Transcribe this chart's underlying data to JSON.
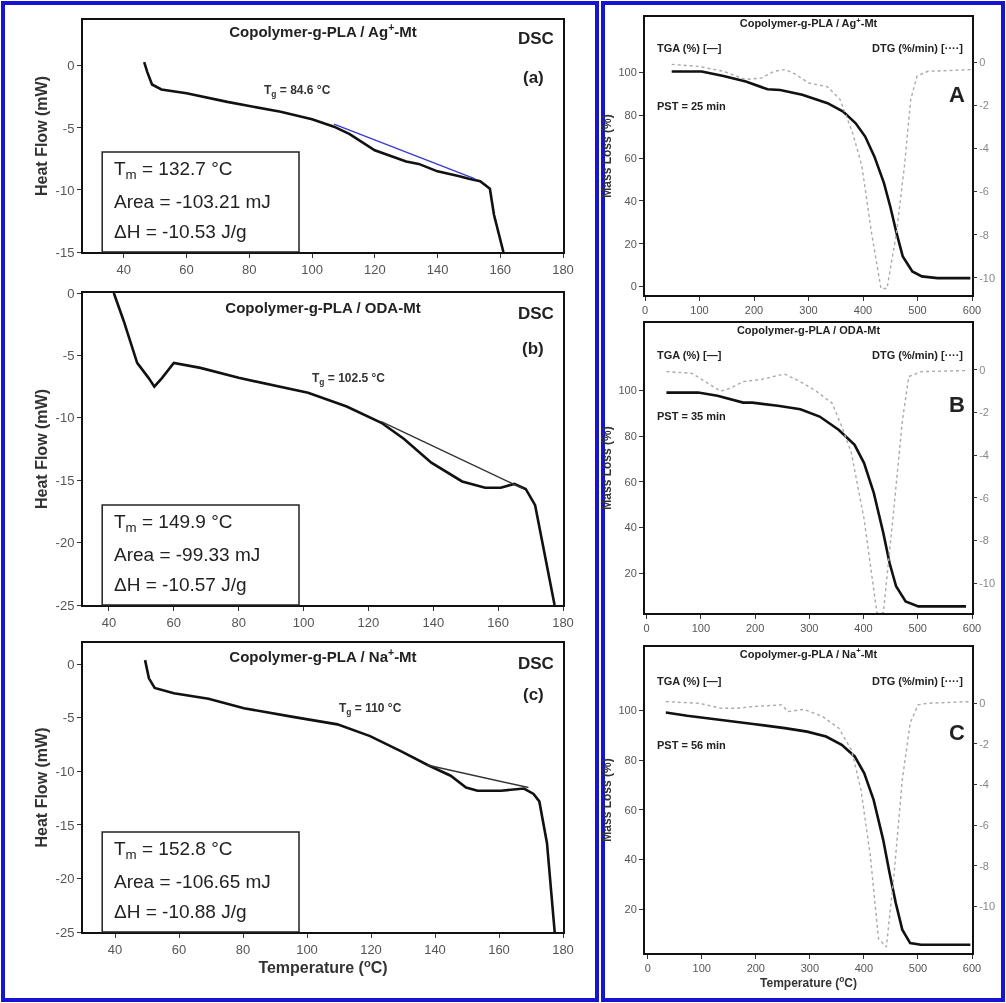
{
  "chart_data": [
    {
      "type": "line",
      "title": "Copolymer-g-PLA / Ag$^{+}$-Mt",
      "ylabel": "Heat Flow (mW)",
      "xlim": [
        27,
        180
      ],
      "xticks": [
        40,
        60,
        80,
        100,
        120,
        140,
        160,
        180
      ],
      "ylim": [
        -15,
        3.7
      ],
      "yticks": [
        0,
        -5,
        -10,
        -15
      ],
      "grid": false,
      "annotations": [
        "DSC",
        "(a)",
        "T$_{m}$ = 132.7 °C",
        "Area = -103.21 mJ",
        "ΔH = -10.53 J/g",
        {
          "text": "T$_{g}$ = 84.6 °C",
          "x": 84.6,
          "y": -3.2
        }
      ],
      "series": [
        {
          "color": "#111111",
          "line_style": "solid",
          "x": [
            46.5,
            47.5,
            49,
            52,
            60,
            73,
            90,
            100,
            107,
            112,
            120,
            130,
            134,
            140,
            147,
            150,
            153.6,
            156.7,
            158,
            161
          ],
          "values": [
            0.3,
            -0.5,
            -1.5,
            -1.9,
            -2.2,
            -2.9,
            -3.7,
            -4.3,
            -4.9,
            -5.5,
            -6.8,
            -7.7,
            -7.9,
            -8.5,
            -8.9,
            -9.1,
            -9.3,
            -9.9,
            -12,
            -15
          ]
        },
        {
          "color": "#3a3ad0",
          "line_style": "solid",
          "x": [
            107,
            152
          ],
          "values": [
            -4.7,
            -9.1
          ]
        }
      ]
    },
    {
      "type": "line",
      "title": "Copolymer-g-PLA / ODA-Mt",
      "ylabel": "Heat Flow (mW)",
      "xlim": [
        32,
        180
      ],
      "xticks": [
        40,
        60,
        80,
        100,
        120,
        140,
        160,
        180
      ],
      "ylim": [
        -25,
        0
      ],
      "yticks": [
        0,
        -5,
        -10,
        -15,
        -20,
        -25
      ],
      "grid": false,
      "annotations": [
        "DSC",
        "(b)",
        "T$_{m}$ = 149.9 °C",
        "Area = -99.33 mJ",
        "ΔH = -10.57 J/g",
        {
          "text": "T$_{g}$ = 102.5 °C",
          "x": 102.5,
          "y": -8.1
        }
      ],
      "series": [
        {
          "color": "#111111",
          "line_style": "solid",
          "x": [
            41.5,
            44.5,
            48.7,
            52.2,
            54,
            56.4,
            60,
            68.2,
            80,
            101.4,
            113.3,
            124,
            131,
            139.4,
            148.9,
            156,
            160.8,
            165,
            168.5,
            171.4,
            177.4
          ],
          "values": [
            0,
            -2.2,
            -5.6,
            -6.8,
            -7.5,
            -6.8,
            -5.6,
            -6,
            -6.8,
            -8,
            -9.1,
            -10.4,
            -11.7,
            -13.6,
            -15.1,
            -15.6,
            -15.6,
            -15.3,
            -15.7,
            -17,
            -25
          ]
        },
        {
          "color": "#333333",
          "line_style": "solid",
          "x": [
            124,
            167.9
          ],
          "values": [
            -10.3,
            -15.7
          ]
        }
      ]
    },
    {
      "type": "line",
      "title": "Copolymer-g-PLA / Na$^{+}$-Mt",
      "xlabel": "Temperature ($^{o}$C)",
      "ylabel": "Heat Flow (mW)",
      "xlim": [
        30,
        180
      ],
      "xticks": [
        40,
        60,
        80,
        100,
        120,
        140,
        160,
        180
      ],
      "ylim": [
        -25,
        2
      ],
      "yticks": [
        0,
        -5,
        -10,
        -15,
        -20,
        -25
      ],
      "grid": false,
      "annotations": [
        "DSC",
        "(c)",
        "T$_{m}$ = 152.8 °C",
        "Area = -106.65 mJ",
        "ΔH = -10.88 J/g",
        {
          "text": "T$_{g}$ = 110 °C",
          "x": 110,
          "y": -5.6
        }
      ],
      "series": [
        {
          "color": "#111111",
          "line_style": "solid",
          "x": [
            49.4,
            50.6,
            52.4,
            58.4,
            69.2,
            80.3,
            95.6,
            109.5,
            119.7,
            129.3,
            137.7,
            144.9,
            149.7,
            153.3,
            160.6,
            167.8,
            170.8,
            172.6,
            175,
            177.4
          ],
          "values": [
            0.4,
            -1.3,
            -2.2,
            -2.7,
            -3.2,
            -4.1,
            -4.9,
            -5.6,
            -6.7,
            -8.1,
            -9.4,
            -10.4,
            -11.5,
            -11.8,
            -11.8,
            -11.6,
            -12.1,
            -12.8,
            -16.7,
            -25
          ]
        },
        {
          "color": "#333333",
          "line_style": "solid",
          "x": [
            137.5,
            169.2
          ],
          "values": [
            -9.4,
            -11.5
          ]
        }
      ]
    },
    {
      "type": "line",
      "title": "Copolymer-g-PLA / Ag$^{+}$-Mt",
      "ylabel": "Mass Loss (%)",
      "xlim": [
        0,
        600
      ],
      "xticks": [
        0,
        100,
        200,
        300,
        400,
        500,
        600
      ],
      "ylim": [
        -4,
        126
      ],
      "yticks": [
        0,
        20,
        40,
        60,
        80,
        100
      ],
      "y2lim": [
        -10.8,
        2.1
      ],
      "y2ticks": [
        0,
        -2,
        -4,
        -6,
        -8,
        -10
      ],
      "grid": false,
      "annotations": [
        "TGA (%) [—]",
        "DTG (%/min) [····]",
        "PST = 25 min",
        "A"
      ],
      "series": [
        {
          "color": "#111111",
          "line_style": "solid",
          "x": [
            49,
            104,
            144,
            185,
            225,
            248,
            288.5,
            335,
            363.5,
            386.6,
            404,
            421,
            438.5,
            450,
            461.6,
            473,
            490.5,
            508,
            536.6,
            597
          ],
          "values": [
            100.5,
            100.5,
            98.4,
            95.8,
            92.2,
            91.9,
            89.6,
            85.7,
            81.8,
            76.3,
            70.1,
            60.7,
            48.3,
            37.4,
            24.9,
            14,
            7,
            4.7,
            3.9,
            3.9
          ]
        },
        {
          "color": "#aaaaaa",
          "line_style": "dotted",
          "axis": "y2",
          "x": [
            49,
            98,
            144,
            185,
            213.5,
            236.6,
            257,
            277,
            300,
            335,
            358,
            381,
            398,
            415.5,
            433,
            444,
            461.6,
            476,
            487.6,
            499,
            519,
            600
          ],
          "values": [
            -0.1,
            -0.19,
            -0.42,
            -0.8,
            -0.73,
            -0.42,
            -0.34,
            -0.57,
            -0.96,
            -1.14,
            -1.73,
            -3.28,
            -4.82,
            -7.9,
            -10.5,
            -10.5,
            -7.9,
            -4.82,
            -1.73,
            -0.65,
            -0.42,
            -0.34
          ]
        }
      ]
    },
    {
      "type": "line",
      "title": "Copolymer-g-PLA / ODA-Mt",
      "ylabel": "Mass Loss (%)",
      "xlim": [
        -3,
        600
      ],
      "xticks": [
        0,
        100,
        200,
        300,
        400,
        500,
        600
      ],
      "ylim": [
        2.5,
        129.6
      ],
      "yticks": [
        20,
        40,
        60,
        80,
        100
      ],
      "y2lim": [
        -11.4,
        2.2
      ],
      "y2ticks": [
        0,
        -2,
        -4,
        -6,
        -8,
        -10
      ],
      "grid": false,
      "annotations": [
        "TGA (%) [—]",
        "DTG (%/min) [····]",
        "PST = 35 min",
        "B"
      ],
      "series": [
        {
          "color": "#111111",
          "line_style": "solid",
          "x": [
            36.5,
            95,
            130.6,
            178,
            195,
            242,
            283.5,
            319,
            354,
            383.5,
            401,
            419,
            436.5,
            448,
            460,
            477.6,
            501,
            589
          ],
          "values": [
            99.1,
            99.1,
            97.7,
            94.7,
            94.7,
            93.3,
            91.8,
            88.6,
            82.8,
            76.2,
            68.2,
            55,
            37.5,
            24.4,
            14.2,
            7.6,
            5.4,
            5.4
          ]
        },
        {
          "color": "#aaaaaa",
          "line_style": "dotted",
          "axis": "y2",
          "x": [
            36.5,
            83.5,
            136.5,
            154,
            178,
            213,
            254,
            283.5,
            313,
            342,
            360,
            377.6,
            401,
            424.7,
            436.5,
            454,
            471.8,
            483.5,
            507,
            589
          ],
          "values": [
            -0.08,
            -0.16,
            -1,
            -0.86,
            -0.55,
            -0.44,
            -0.19,
            -0.55,
            -1,
            -1.56,
            -2.66,
            -3.9,
            -7,
            -11.4,
            -11.4,
            -7,
            -2.34,
            -0.31,
            -0.08,
            -0.03
          ]
        }
      ]
    },
    {
      "type": "line",
      "title": "Copolymer-g-PLA / Na$^{+}$-Mt",
      "xlabel": "Temperature ($^{o}$C)",
      "ylabel": "Mass Loss (%)",
      "xlim": [
        -5,
        600
      ],
      "xticks": [
        0,
        100,
        200,
        300,
        400,
        500,
        600
      ],
      "ylim": [
        2.3,
        125.6
      ],
      "yticks": [
        20,
        40,
        60,
        80,
        100
      ],
      "y2lim": [
        -12.3,
        2.77
      ],
      "y2ticks": [
        0,
        -2,
        -4,
        -6,
        -8,
        -10
      ],
      "grid": false,
      "annotations": [
        "TGA (%) [—]",
        "DTG (%/min) [····]",
        "PST = 56 min",
        "C"
      ],
      "series": [
        {
          "color": "#111111",
          "line_style": "solid",
          "x": [
            33.5,
            73,
            136,
            195,
            253.7,
            294.8,
            330,
            359,
            383,
            400.5,
            418,
            435.7,
            447.5,
            459,
            471,
            485.6,
            505.6,
            597
          ],
          "values": [
            99.2,
            97.9,
            96.2,
            94.6,
            92.9,
            91.5,
            89.5,
            86.2,
            81.5,
            74.8,
            64,
            47.9,
            34.5,
            22.4,
            11.7,
            6.3,
            5.6,
            5.6
          ]
        },
        {
          "color": "#aaaaaa",
          "line_style": "dotted",
          "axis": "y2",
          "x": [
            33.5,
            95,
            136,
            165.6,
            195,
            248,
            260,
            289,
            324,
            353.5,
            377,
            394.6,
            412,
            427,
            441.6,
            456,
            471,
            485.6,
            500,
            518,
            597
          ],
          "values": [
            0.08,
            0,
            -0.25,
            -0.25,
            -0.16,
            -0.08,
            -0.41,
            -0.3,
            -0.66,
            -1.23,
            -2.3,
            -4.26,
            -7.54,
            -11.6,
            -12,
            -8.36,
            -3.77,
            -0.98,
            -0.08,
            0,
            0.08
          ]
        }
      ]
    }
  ]
}
